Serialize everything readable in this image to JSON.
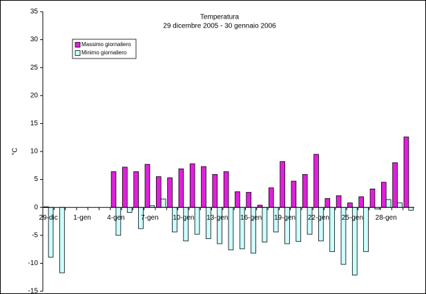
{
  "chart_data": {
    "type": "bar",
    "title": "Temperatura",
    "subtitle": "29 dicembre 2005 - 30 gennaio 2006",
    "y_label": "°C",
    "categories": [
      "29-dic",
      null,
      null,
      "1-gen",
      null,
      null,
      "4-gen",
      null,
      null,
      "7-gen",
      null,
      null,
      "10-gen",
      null,
      null,
      "13-gen",
      null,
      null,
      "16-gen",
      null,
      null,
      "19-gen",
      null,
      null,
      "22-gen",
      null,
      null,
      "25-gen",
      null,
      null,
      "28-gen",
      null,
      null
    ],
    "series": [
      {
        "name": "Massimo giornaliero",
        "color": "#e020dc",
        "values": [
          0.1,
          null,
          null,
          null,
          null,
          null,
          6.4,
          7.2,
          6.4,
          7.7,
          5.5,
          5.3,
          6.9,
          7.8,
          7.3,
          5.9,
          6.4,
          2.8,
          2.7,
          0.4,
          3.5,
          8.2,
          4.7,
          5.9,
          9.5,
          1.6,
          2.1,
          0.8,
          1.9,
          3.3,
          4.5,
          8.0,
          12.6
        ]
      },
      {
        "name": "Minimo giornaliero",
        "color": "#ccffff",
        "values": [
          -8.9,
          -11.7,
          null,
          null,
          null,
          null,
          -5.0,
          -0.9,
          -3.8,
          0.3,
          1.5,
          -4.4,
          -6.0,
          -4.8,
          -5.6,
          -6.5,
          -7.6,
          -7.4,
          -8.2,
          -6.2,
          -4.4,
          -6.5,
          -6.1,
          -4.8,
          -6.0,
          -7.9,
          -10.2,
          -12.1,
          -7.9,
          -0.3,
          1.4,
          0.8,
          -0.5
        ]
      }
    ],
    "ylim": [
      -15,
      35
    ],
    "yticks": [
      -15,
      -10,
      -5,
      0,
      5,
      10,
      15,
      20,
      25,
      30,
      35
    ],
    "grid": false,
    "legend": "upper left"
  }
}
